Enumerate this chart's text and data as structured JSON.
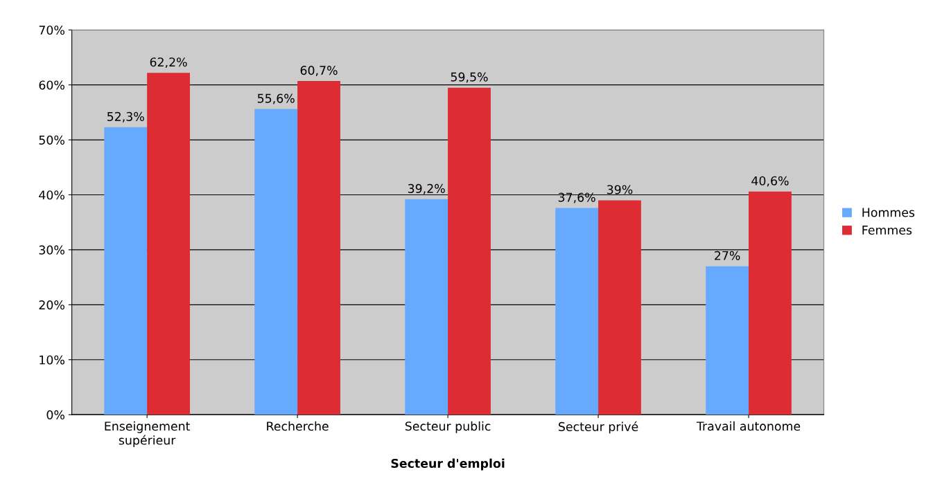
{
  "chart_data": {
    "type": "bar",
    "xlabel": "Secteur d'emploi",
    "categories": [
      "Enseignement\nsupérieur",
      "Recherche",
      "Secteur public",
      "Secteur privé",
      "Travail autonome"
    ],
    "series": [
      {
        "name": "Hommes",
        "color": "#66aaff",
        "values": [
          52.3,
          55.6,
          39.2,
          37.6,
          27
        ],
        "value_labels": [
          "52,3%",
          "55,6%",
          "39,2%",
          "37,6%",
          "27%"
        ]
      },
      {
        "name": "Femmes",
        "color": "#dd2c34",
        "values": [
          62.2,
          60.7,
          59.5,
          39,
          40.6
        ],
        "value_labels": [
          "62,2%",
          "60,7%",
          "59,5%",
          "39%",
          "40,6%"
        ]
      }
    ],
    "ylim": [
      0,
      70
    ],
    "yticks": [
      {
        "value": 0,
        "label": "0%"
      },
      {
        "value": 10,
        "label": "10%"
      },
      {
        "value": 20,
        "label": "20%"
      },
      {
        "value": 30,
        "label": "30%"
      },
      {
        "value": 40,
        "label": "40%"
      },
      {
        "value": 50,
        "label": "50%"
      },
      {
        "value": 60,
        "label": "60%"
      },
      {
        "value": 70,
        "label": "70%"
      }
    ],
    "grid": "y",
    "legend": "right"
  }
}
